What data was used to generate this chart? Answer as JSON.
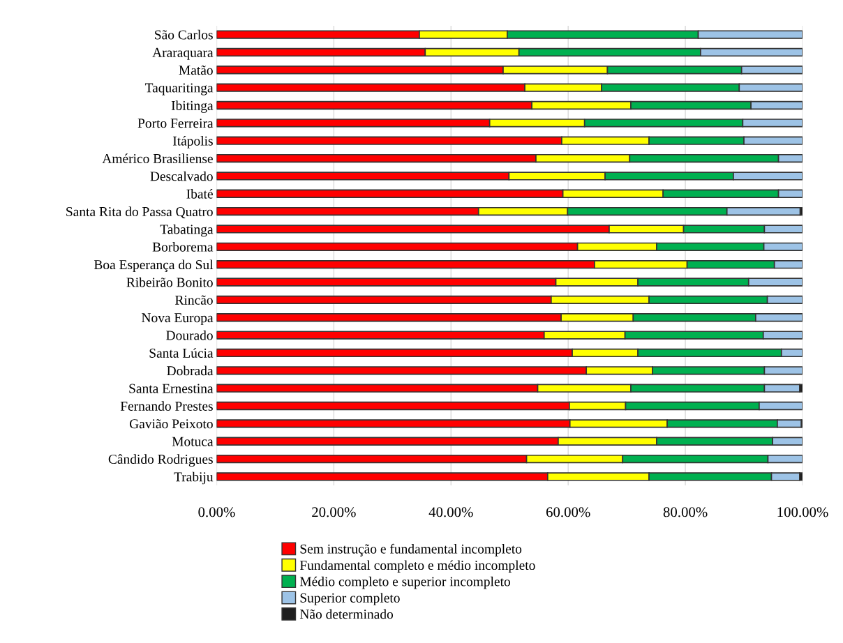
{
  "chart_data": {
    "type": "bar",
    "orientation": "horizontal",
    "stacked": true,
    "categories": [
      "São Carlos",
      "Araraquara",
      "Matão",
      "Taquaritinga",
      "Ibitinga",
      "Porto Ferreira",
      "Itápolis",
      "Américo Brasiliense",
      "Descalvado",
      "Ibaté",
      "Santa Rita do Passa Quatro",
      "Tabatinga",
      "Borborema",
      "Boa Esperança do Sul",
      "Ribeirão Bonito",
      "Rincão",
      "Nova Europa",
      "Dourado",
      "Santa Lúcia",
      "Dobrada",
      "Santa Ernestina",
      "Fernando Prestes",
      "Gavião Peixoto",
      "Motuca",
      "Cândido Rodrigues",
      "Trabiju"
    ],
    "series": [
      {
        "name": "Sem instrução e fundamental incompleto",
        "color": "#ff0000",
        "values": [
          34.6,
          35.6,
          48.9,
          52.6,
          53.8,
          46.6,
          58.9,
          54.5,
          49.9,
          59.1,
          44.7,
          67.0,
          61.6,
          64.5,
          57.9,
          57.1,
          58.8,
          55.9,
          60.7,
          63.1,
          54.8,
          60.2,
          60.3,
          58.3,
          52.9,
          56.5
        ]
      },
      {
        "name": "Fundamental completo e médio incompleto",
        "color": "#ffff00",
        "values": [
          15.0,
          16.0,
          17.8,
          13.1,
          16.9,
          16.2,
          14.9,
          16.0,
          16.4,
          17.1,
          15.2,
          12.7,
          13.5,
          15.8,
          14.0,
          16.7,
          12.3,
          13.8,
          11.2,
          11.3,
          15.9,
          9.6,
          16.6,
          16.8,
          16.4,
          17.3
        ]
      },
      {
        "name": "Médio completo e superior incompleto",
        "color": "#00b050",
        "values": [
          32.6,
          31.0,
          22.9,
          23.5,
          20.5,
          27.0,
          16.2,
          25.4,
          21.9,
          19.7,
          27.2,
          13.8,
          18.3,
          14.9,
          18.9,
          20.2,
          20.9,
          23.6,
          24.5,
          19.1,
          22.8,
          22.8,
          18.8,
          19.8,
          24.8,
          20.9
        ]
      },
      {
        "name": "Superior completo",
        "color": "#9dc3e6",
        "values": [
          17.8,
          17.4,
          10.4,
          10.8,
          8.8,
          10.2,
          10.0,
          4.1,
          11.8,
          4.1,
          12.5,
          6.5,
          6.6,
          4.8,
          9.2,
          6.0,
          8.0,
          6.7,
          3.6,
          6.5,
          6.0,
          7.4,
          4.1,
          5.1,
          5.9,
          4.8
        ]
      },
      {
        "name": "Não determinado",
        "color": "#1f1f1f",
        "values": [
          0,
          0,
          0,
          0,
          0,
          0,
          0,
          0,
          0,
          0,
          0.4,
          0,
          0,
          0,
          0,
          0,
          0,
          0,
          0,
          0,
          0.5,
          0,
          0.2,
          0,
          0,
          0.5
        ]
      }
    ],
    "xlim": [
      0,
      100
    ],
    "xticks": [
      {
        "value": 0,
        "label": "0.00%"
      },
      {
        "value": 20,
        "label": "20.00%"
      },
      {
        "value": 40,
        "label": "40.00%"
      },
      {
        "value": 60,
        "label": "60.00%"
      },
      {
        "value": 80,
        "label": "80.00%"
      },
      {
        "value": 100,
        "label": "100.00%"
      }
    ],
    "grid": "x",
    "legend": "bottom"
  }
}
